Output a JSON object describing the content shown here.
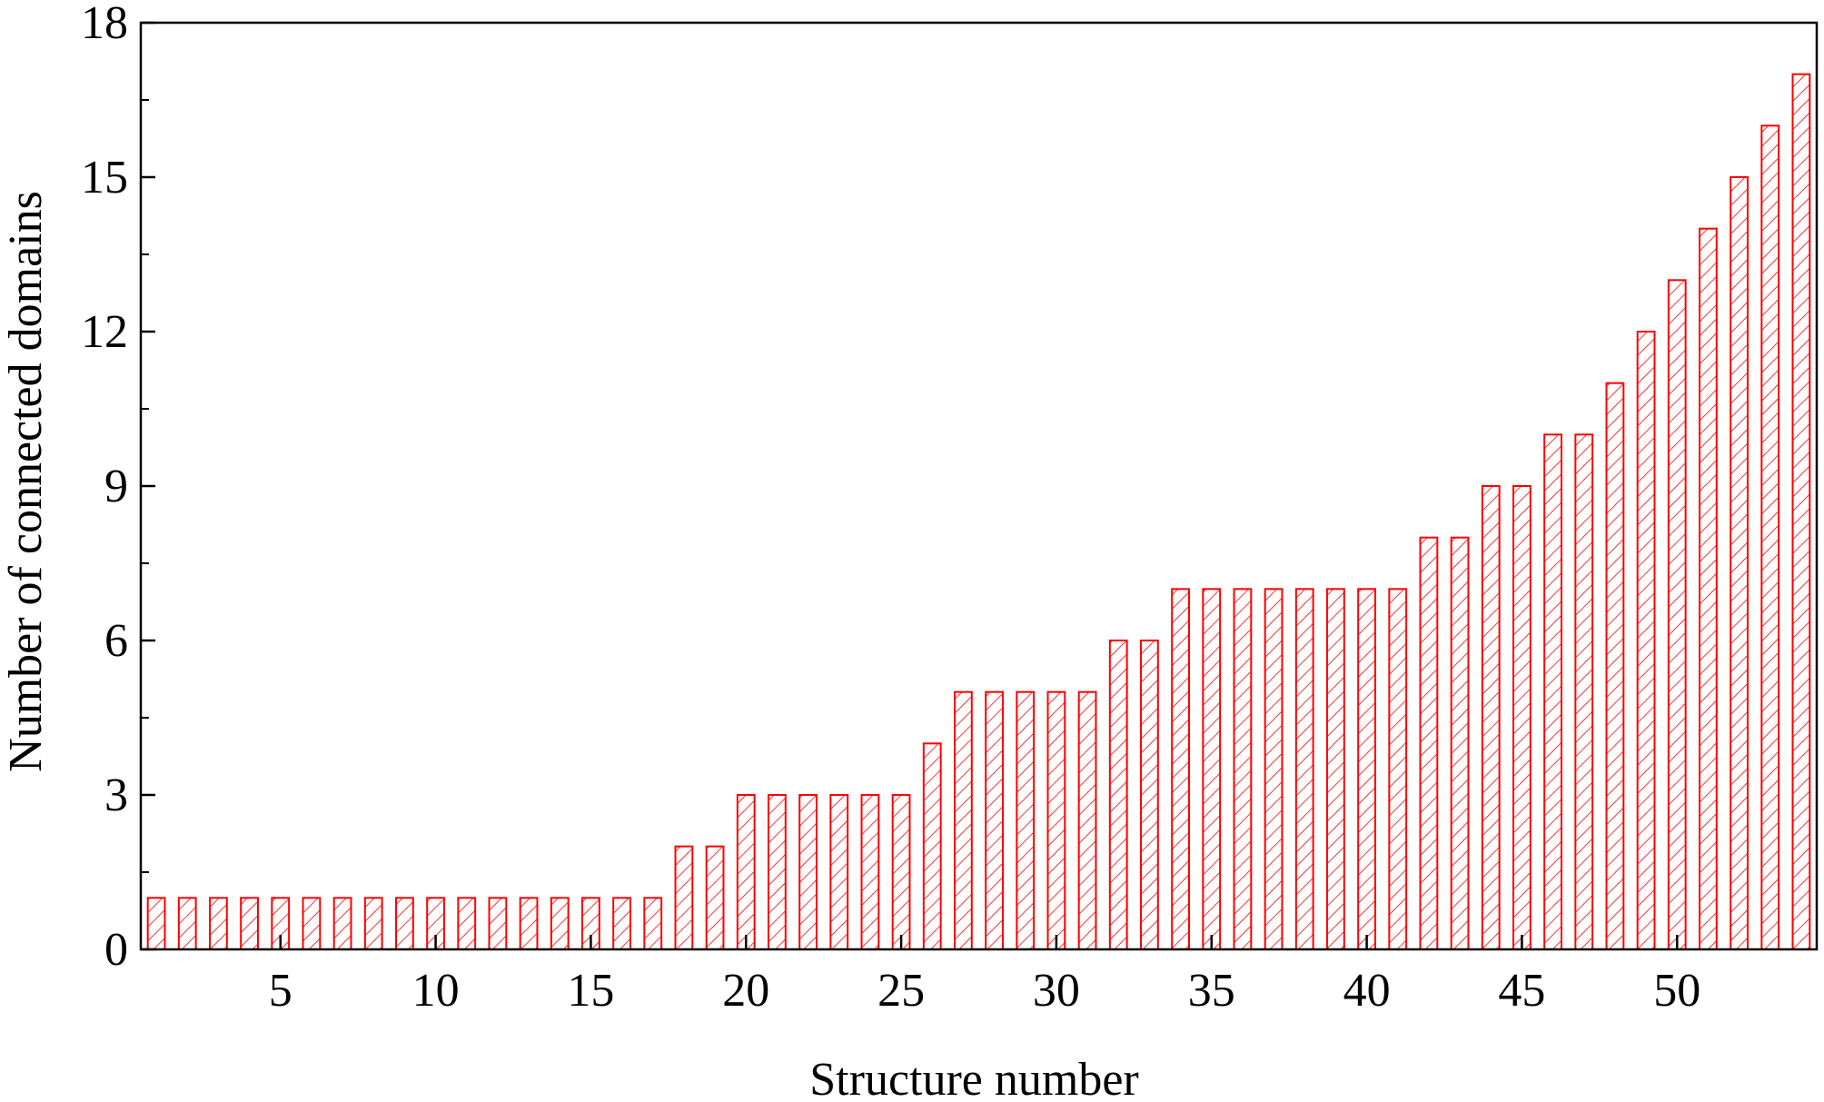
{
  "chart_data": {
    "type": "bar",
    "xlabel": "Structure number",
    "ylabel": "Number of connected domains",
    "xlim": [
      0.5,
      54.5
    ],
    "ylim": [
      0,
      18
    ],
    "xticks": [
      5,
      10,
      15,
      20,
      25,
      30,
      35,
      40,
      45,
      50
    ],
    "yticks": [
      0,
      3,
      6,
      9,
      12,
      15,
      18
    ],
    "x": [
      1,
      2,
      3,
      4,
      5,
      6,
      7,
      8,
      9,
      10,
      11,
      12,
      13,
      14,
      15,
      16,
      17,
      18,
      19,
      20,
      21,
      22,
      23,
      24,
      25,
      26,
      27,
      28,
      29,
      30,
      31,
      32,
      33,
      34,
      35,
      36,
      37,
      38,
      39,
      40,
      41,
      42,
      43,
      44,
      45,
      46,
      47,
      48,
      49,
      50,
      51,
      52,
      53,
      54
    ],
    "values": [
      1,
      1,
      1,
      1,
      1,
      1,
      1,
      1,
      1,
      1,
      1,
      1,
      1,
      1,
      1,
      1,
      1,
      2,
      2,
      3,
      3,
      3,
      3,
      3,
      3,
      4,
      5,
      5,
      5,
      5,
      5,
      6,
      6,
      7,
      7,
      7,
      7,
      7,
      7,
      7,
      7,
      8,
      8,
      9,
      9,
      10,
      10,
      11,
      12,
      13,
      14,
      15,
      16,
      17
    ],
    "bar_style": "hatched",
    "grid": false,
    "legend": false,
    "colors": {
      "bar_stroke": "#ff0000",
      "axis": "#000000"
    }
  }
}
